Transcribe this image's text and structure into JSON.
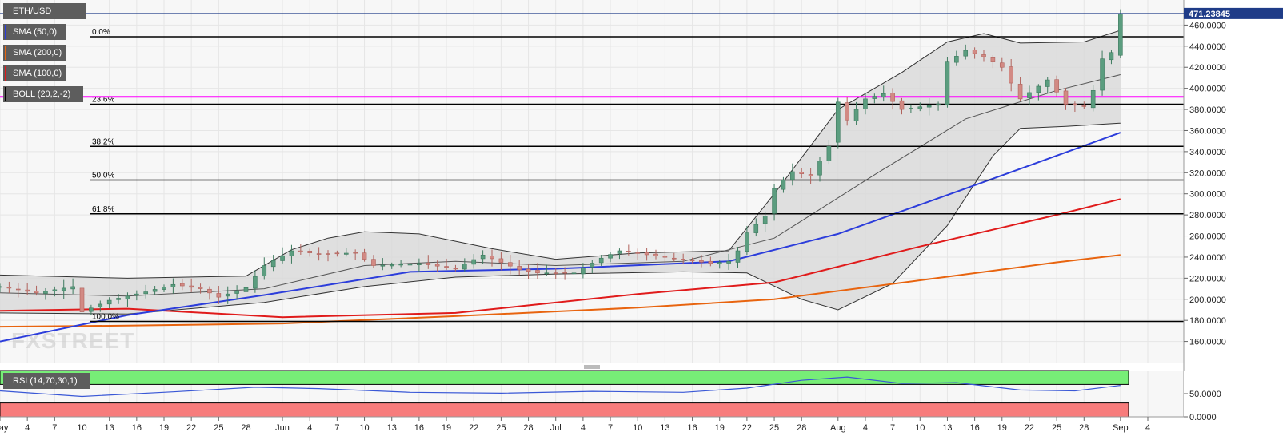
{
  "legend": {
    "items": [
      {
        "label": "ETH/USD",
        "color": "#5d5d5d"
      },
      {
        "label": "SMA (50,0)",
        "color": "#2c3ddb"
      },
      {
        "label": "SMA (200,0)",
        "color": "#e8640f"
      },
      {
        "label": "SMA (100,0)",
        "color": "#e01b1b"
      },
      {
        "label": "BOLL (20,2,-2)",
        "color": "#000000"
      }
    ],
    "rsi_label": "RSI (14,70,30,1)"
  },
  "watermark": "FXSTREET",
  "price_tag": "471.23845",
  "colors": {
    "bull": "#5b9d7f",
    "bear": "#d28a84",
    "boll_fill": "#d7d7d7",
    "sma50": "#2c3ddb",
    "sma100": "#e01b1b",
    "sma200": "#e8640f",
    "magenta": "#ff00ff",
    "rsi_green": "#77ee77",
    "rsi_red": "#f77c7c",
    "rsi_line": "#3a58d6"
  },
  "chart_data": {
    "type": "candlestick",
    "price_axis": {
      "ylim": [
        140,
        480
      ],
      "ticks": [
        160,
        180,
        200,
        220,
        240,
        260,
        280,
        300,
        320,
        340,
        360,
        380,
        400,
        420,
        440,
        460
      ],
      "tick_labels": [
        "160.0000",
        "180.0000",
        "200.0000",
        "220.0000",
        "240.0000",
        "260.0000",
        "280.0000",
        "300.0000",
        "320.0000",
        "340.0000",
        "360.0000",
        "380.0000",
        "400.0000",
        "420.0000",
        "440.0000",
        "460.0000"
      ]
    },
    "x_axis": {
      "start_date": "2020-05-01",
      "end_date": "2020-09-06",
      "labels": [
        {
          "label": "May",
          "date": "2020-05-01"
        },
        {
          "label": "4",
          "date": "2020-05-04"
        },
        {
          "label": "7",
          "date": "2020-05-07"
        },
        {
          "label": "10",
          "date": "2020-05-10"
        },
        {
          "label": "13",
          "date": "2020-05-13"
        },
        {
          "label": "16",
          "date": "2020-05-16"
        },
        {
          "label": "19",
          "date": "2020-05-19"
        },
        {
          "label": "22",
          "date": "2020-05-22"
        },
        {
          "label": "25",
          "date": "2020-05-25"
        },
        {
          "label": "28",
          "date": "2020-05-28"
        },
        {
          "label": "Jun",
          "date": "2020-06-01"
        },
        {
          "label": "4",
          "date": "2020-06-04"
        },
        {
          "label": "7",
          "date": "2020-06-07"
        },
        {
          "label": "10",
          "date": "2020-06-10"
        },
        {
          "label": "13",
          "date": "2020-06-13"
        },
        {
          "label": "16",
          "date": "2020-06-16"
        },
        {
          "label": "19",
          "date": "2020-06-19"
        },
        {
          "label": "22",
          "date": "2020-06-22"
        },
        {
          "label": "25",
          "date": "2020-06-25"
        },
        {
          "label": "28",
          "date": "2020-06-28"
        },
        {
          "label": "Jul",
          "date": "2020-07-01"
        },
        {
          "label": "4",
          "date": "2020-07-04"
        },
        {
          "label": "7",
          "date": "2020-07-07"
        },
        {
          "label": "10",
          "date": "2020-07-10"
        },
        {
          "label": "13",
          "date": "2020-07-13"
        },
        {
          "label": "16",
          "date": "2020-07-16"
        },
        {
          "label": "19",
          "date": "2020-07-19"
        },
        {
          "label": "22",
          "date": "2020-07-22"
        },
        {
          "label": "25",
          "date": "2020-07-25"
        },
        {
          "label": "28",
          "date": "2020-07-28"
        },
        {
          "label": "Aug",
          "date": "2020-08-01"
        },
        {
          "label": "4",
          "date": "2020-08-04"
        },
        {
          "label": "7",
          "date": "2020-08-07"
        },
        {
          "label": "10",
          "date": "2020-08-10"
        },
        {
          "label": "13",
          "date": "2020-08-13"
        },
        {
          "label": "16",
          "date": "2020-08-16"
        },
        {
          "label": "19",
          "date": "2020-08-19"
        },
        {
          "label": "22",
          "date": "2020-08-22"
        },
        {
          "label": "25",
          "date": "2020-08-25"
        },
        {
          "label": "28",
          "date": "2020-08-28"
        },
        {
          "label": "Sep",
          "date": "2020-09-01"
        },
        {
          "label": "4",
          "date": "2020-09-04"
        }
      ]
    },
    "fibonacci": [
      {
        "label": "0.0%",
        "value": 449
      },
      {
        "label": "23.6%",
        "value": 385
      },
      {
        "label": "38.2%",
        "value": 345
      },
      {
        "label": "50.0%",
        "value": 313
      },
      {
        "label": "61.8%",
        "value": 281
      },
      {
        "label": "100.0%",
        "value": 179
      }
    ],
    "horizontal_line": {
      "value": 392
    },
    "candles_anchors": [
      {
        "date": "2020-05-01",
        "close": 212
      },
      {
        "date": "2020-05-05",
        "close": 206
      },
      {
        "date": "2020-05-09",
        "close": 212
      },
      {
        "date": "2020-05-10",
        "close": 188
      },
      {
        "date": "2020-05-13",
        "close": 199
      },
      {
        "date": "2020-05-17",
        "close": 207
      },
      {
        "date": "2020-05-20",
        "close": 214
      },
      {
        "date": "2020-05-23",
        "close": 210
      },
      {
        "date": "2020-05-25",
        "close": 202
      },
      {
        "date": "2020-05-28",
        "close": 211
      },
      {
        "date": "2020-05-30",
        "close": 232
      },
      {
        "date": "2020-06-02",
        "close": 246
      },
      {
        "date": "2020-06-05",
        "close": 243
      },
      {
        "date": "2020-06-09",
        "close": 244
      },
      {
        "date": "2020-06-11",
        "close": 232
      },
      {
        "date": "2020-06-16",
        "close": 234
      },
      {
        "date": "2020-06-20",
        "close": 229
      },
      {
        "date": "2020-06-23",
        "close": 242
      },
      {
        "date": "2020-06-27",
        "close": 228
      },
      {
        "date": "2020-06-29",
        "close": 225
      },
      {
        "date": "2020-07-03",
        "close": 225
      },
      {
        "date": "2020-07-06",
        "close": 239
      },
      {
        "date": "2020-07-08",
        "close": 246
      },
      {
        "date": "2020-07-12",
        "close": 241
      },
      {
        "date": "2020-07-18",
        "close": 234
      },
      {
        "date": "2020-07-20",
        "close": 236
      },
      {
        "date": "2020-07-21",
        "close": 246
      },
      {
        "date": "2020-07-22",
        "close": 263
      },
      {
        "date": "2020-07-24",
        "close": 279
      },
      {
        "date": "2020-07-25",
        "close": 305
      },
      {
        "date": "2020-07-27",
        "close": 321
      },
      {
        "date": "2020-07-29",
        "close": 317
      },
      {
        "date": "2020-07-31",
        "close": 345
      },
      {
        "date": "2020-08-01",
        "close": 387
      },
      {
        "date": "2020-08-02",
        "close": 370
      },
      {
        "date": "2020-08-04",
        "close": 390
      },
      {
        "date": "2020-08-06",
        "close": 395
      },
      {
        "date": "2020-08-08",
        "close": 380
      },
      {
        "date": "2020-08-12",
        "close": 385
      },
      {
        "date": "2020-08-13",
        "close": 425
      },
      {
        "date": "2020-08-15",
        "close": 436
      },
      {
        "date": "2020-08-17",
        "close": 430
      },
      {
        "date": "2020-08-19",
        "close": 420
      },
      {
        "date": "2020-08-21",
        "close": 390
      },
      {
        "date": "2020-08-24",
        "close": 408
      },
      {
        "date": "2020-08-26",
        "close": 385
      },
      {
        "date": "2020-08-28",
        "close": 383
      },
      {
        "date": "2020-08-29",
        "close": 398
      },
      {
        "date": "2020-08-30",
        "close": 428
      },
      {
        "date": "2020-08-31",
        "close": 434
      },
      {
        "date": "2020-09-01",
        "close": 471
      }
    ],
    "sma50": [
      {
        "date": "2020-05-01",
        "value": 160
      },
      {
        "date": "2020-05-15",
        "value": 185
      },
      {
        "date": "2020-05-30",
        "value": 204
      },
      {
        "date": "2020-06-15",
        "value": 226
      },
      {
        "date": "2020-07-01",
        "value": 229
      },
      {
        "date": "2020-07-20",
        "value": 236
      },
      {
        "date": "2020-08-01",
        "value": 262
      },
      {
        "date": "2020-08-15",
        "value": 305
      },
      {
        "date": "2020-09-01",
        "value": 358
      }
    ],
    "sma100": [
      {
        "date": "2020-05-01",
        "value": 189
      },
      {
        "date": "2020-05-15",
        "value": 191
      },
      {
        "date": "2020-06-01",
        "value": 183
      },
      {
        "date": "2020-06-20",
        "value": 187
      },
      {
        "date": "2020-07-10",
        "value": 205
      },
      {
        "date": "2020-07-25",
        "value": 216
      },
      {
        "date": "2020-08-10",
        "value": 250
      },
      {
        "date": "2020-08-25",
        "value": 280
      },
      {
        "date": "2020-09-01",
        "value": 295
      }
    ],
    "sma200": [
      {
        "date": "2020-05-01",
        "value": 174
      },
      {
        "date": "2020-05-15",
        "value": 175
      },
      {
        "date": "2020-06-01",
        "value": 177
      },
      {
        "date": "2020-06-20",
        "value": 184
      },
      {
        "date": "2020-07-10",
        "value": 192
      },
      {
        "date": "2020-07-25",
        "value": 200
      },
      {
        "date": "2020-08-10",
        "value": 218
      },
      {
        "date": "2020-08-25",
        "value": 235
      },
      {
        "date": "2020-09-01",
        "value": 242
      }
    ],
    "boll_upper": [
      {
        "date": "2020-05-01",
        "value": 223
      },
      {
        "date": "2020-05-15",
        "value": 220
      },
      {
        "date": "2020-05-28",
        "value": 222
      },
      {
        "date": "2020-06-02",
        "value": 247
      },
      {
        "date": "2020-06-06",
        "value": 258
      },
      {
        "date": "2020-06-10",
        "value": 264
      },
      {
        "date": "2020-06-16",
        "value": 262
      },
      {
        "date": "2020-06-24",
        "value": 248
      },
      {
        "date": "2020-07-01",
        "value": 238
      },
      {
        "date": "2020-07-10",
        "value": 244
      },
      {
        "date": "2020-07-20",
        "value": 246
      },
      {
        "date": "2020-07-25",
        "value": 300
      },
      {
        "date": "2020-08-01",
        "value": 380
      },
      {
        "date": "2020-08-08",
        "value": 415
      },
      {
        "date": "2020-08-13",
        "value": 444
      },
      {
        "date": "2020-08-17",
        "value": 452
      },
      {
        "date": "2020-08-21",
        "value": 443
      },
      {
        "date": "2020-08-28",
        "value": 444
      },
      {
        "date": "2020-09-01",
        "value": 455
      }
    ],
    "boll_mid": [
      {
        "date": "2020-05-01",
        "value": 206
      },
      {
        "date": "2020-05-15",
        "value": 203
      },
      {
        "date": "2020-05-30",
        "value": 210
      },
      {
        "date": "2020-06-10",
        "value": 232
      },
      {
        "date": "2020-06-20",
        "value": 236
      },
      {
        "date": "2020-07-01",
        "value": 232
      },
      {
        "date": "2020-07-15",
        "value": 236
      },
      {
        "date": "2020-07-25",
        "value": 258
      },
      {
        "date": "2020-08-05",
        "value": 318
      },
      {
        "date": "2020-08-15",
        "value": 371
      },
      {
        "date": "2020-08-25",
        "value": 398
      },
      {
        "date": "2020-09-01",
        "value": 413
      }
    ],
    "boll_lower": [
      {
        "date": "2020-05-01",
        "value": 187
      },
      {
        "date": "2020-05-15",
        "value": 186
      },
      {
        "date": "2020-05-30",
        "value": 197
      },
      {
        "date": "2020-06-10",
        "value": 212
      },
      {
        "date": "2020-06-20",
        "value": 221
      },
      {
        "date": "2020-07-01",
        "value": 224
      },
      {
        "date": "2020-07-15",
        "value": 226
      },
      {
        "date": "2020-07-22",
        "value": 225
      },
      {
        "date": "2020-07-28",
        "value": 200
      },
      {
        "date": "2020-08-01",
        "value": 190
      },
      {
        "date": "2020-08-07",
        "value": 215
      },
      {
        "date": "2020-08-13",
        "value": 270
      },
      {
        "date": "2020-08-18",
        "value": 336
      },
      {
        "date": "2020-08-21",
        "value": 362
      },
      {
        "date": "2020-08-26",
        "value": 364
      },
      {
        "date": "2020-09-01",
        "value": 367
      }
    ],
    "rsi": {
      "ylim": [
        0,
        100
      ],
      "upper": 70,
      "lower": 30,
      "ticks": [
        0,
        50
      ],
      "tick_labels": [
        "0.0000",
        "50.0000"
      ],
      "series": [
        {
          "date": "2020-05-01",
          "value": 56
        },
        {
          "date": "2020-05-10",
          "value": 44
        },
        {
          "date": "2020-05-20",
          "value": 54
        },
        {
          "date": "2020-05-29",
          "value": 64
        },
        {
          "date": "2020-06-05",
          "value": 61
        },
        {
          "date": "2020-06-15",
          "value": 53
        },
        {
          "date": "2020-06-25",
          "value": 51
        },
        {
          "date": "2020-07-05",
          "value": 55
        },
        {
          "date": "2020-07-15",
          "value": 53
        },
        {
          "date": "2020-07-22",
          "value": 62
        },
        {
          "date": "2020-07-28",
          "value": 79
        },
        {
          "date": "2020-08-02",
          "value": 86
        },
        {
          "date": "2020-08-08",
          "value": 72
        },
        {
          "date": "2020-08-14",
          "value": 74
        },
        {
          "date": "2020-08-21",
          "value": 58
        },
        {
          "date": "2020-08-27",
          "value": 56
        },
        {
          "date": "2020-09-01",
          "value": 68
        }
      ]
    }
  }
}
